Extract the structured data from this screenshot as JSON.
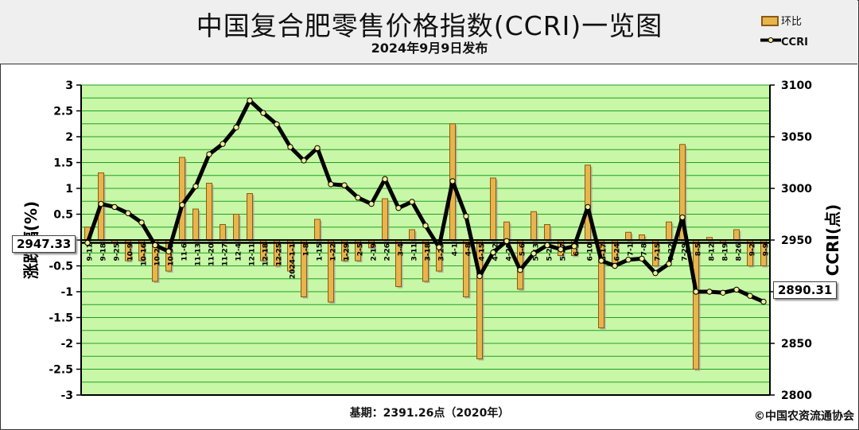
{
  "title": "中国复合肥零售价格指数(CCRI)一览图",
  "subtitle": "2024年9月9日发布",
  "legend": {
    "bar_label": "环比",
    "line_label": "CCRI"
  },
  "base_note": "基期：2391.26点（2020年）",
  "copyright": "©中国农资流通协会",
  "callouts": {
    "start": "2947.33",
    "end": "2890.31"
  },
  "colors": {
    "plot_bg": "#c8f7a7",
    "grid": "#20a020",
    "bar_fill": "#e8b54c",
    "bar_edge": "#8a5a12",
    "line": "#000000",
    "marker": "#f2ee9a"
  },
  "chart_data": {
    "type": "bar+line",
    "left_axis": {
      "label": "涨跌幅(%)",
      "range": [
        -3,
        3
      ],
      "ticks": [
        "3",
        "2.5",
        "2",
        "1.5",
        "1",
        "0.5",
        "0",
        "-0.5",
        "-1",
        "-1.5",
        "-2",
        "-2.5",
        "-3"
      ]
    },
    "right_axis": {
      "label": "CCRI(点)",
      "range": [
        2800,
        3100
      ],
      "ticks": [
        "3100",
        "3050",
        "3000",
        "2950",
        "2900",
        "2850",
        "2800"
      ]
    },
    "reference_line": 2947.33,
    "categories": [
      "9-11",
      "9-18",
      "9-25",
      "10-9",
      "10-16",
      "10-23",
      "10-30",
      "11-6",
      "11-13",
      "11-20",
      "11-27",
      "12-4",
      "12-11",
      "12-18",
      "12-25",
      "2024-1-1",
      "1-8",
      "1-15",
      "1-22",
      "1-29",
      "2-5",
      "2-19",
      "2-26",
      "3-4",
      "3-11",
      "3-18",
      "3-25",
      "4-1",
      "4-8",
      "4-15",
      "4-22",
      "4-29",
      "5-6",
      "5-13",
      "5-20",
      "5-27",
      "6-3",
      "6-10",
      "6-17",
      "6-24",
      "7-1",
      "7-8",
      "7-15",
      "7-22",
      "7-29",
      "8-5",
      "8-12",
      "8-19",
      "8-26",
      "9-2",
      "9-9"
    ],
    "series": [
      {
        "name": "环比",
        "type": "bar",
        "values": [
          0.25,
          1.3,
          -0.05,
          -0.4,
          -0.4,
          -0.8,
          -0.6,
          1.6,
          0.6,
          1.1,
          0.3,
          0.5,
          0.9,
          -0.4,
          -0.5,
          -0.6,
          -1.1,
          0.4,
          -1.2,
          -0.4,
          -0.4,
          -0.15,
          0.8,
          -0.9,
          0.2,
          -0.8,
          -0.6,
          2.25,
          -1.1,
          -2.3,
          1.2,
          0.35,
          -0.95,
          0.55,
          0.3,
          -0.3,
          -0.3,
          1.45,
          -1.7,
          -0.45,
          0.15,
          0.1,
          -0.5,
          0.35,
          1.85,
          -2.5,
          0.05,
          -0.05,
          0.2,
          -0.5,
          -0.5
        ]
      },
      {
        "name": "CCRI",
        "type": "line",
        "values": [
          2947.3,
          2985,
          2982,
          2976,
          2967,
          2945,
          2939,
          2984,
          3002,
          3033,
          3043,
          3059,
          3085,
          3073,
          3062,
          3040,
          3027,
          3039,
          3004,
          3003,
          2991,
          2985,
          3009,
          2981,
          2987,
          2964,
          2943,
          3007,
          2973,
          2915,
          2938,
          2949,
          2921,
          2937,
          2945,
          2941,
          2944,
          2982,
          2930,
          2925,
          2931,
          2932,
          2918,
          2927,
          2972,
          2900,
          2900,
          2899,
          2902,
          2896,
          2890.3
        ]
      }
    ]
  }
}
